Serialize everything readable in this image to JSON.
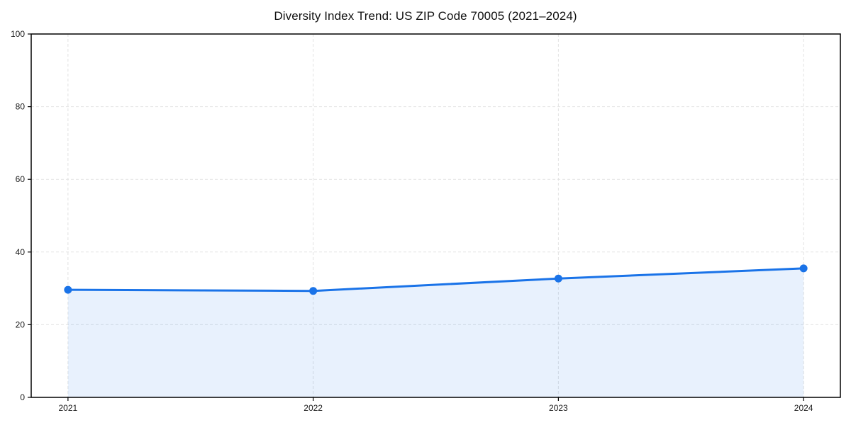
{
  "figure": {
    "background": "#ffffff"
  },
  "chart_data": {
    "type": "area",
    "title": "Diversity Index Trend: US ZIP Code 70005 (2021–2024)",
    "categories": [
      "2021",
      "2022",
      "2023",
      "2024"
    ],
    "series": [
      {
        "name": "Diversity Index",
        "values": [
          29.6,
          29.3,
          32.7,
          35.5
        ]
      }
    ],
    "xlabel": "",
    "ylabel": "",
    "ylim": [
      0,
      100
    ],
    "yticks": [
      0,
      20,
      40,
      60,
      80,
      100
    ],
    "grid": true,
    "grid_style": "dashed",
    "legend": false,
    "colors": {
      "line": "#1a73e8",
      "marker": "#1a73e8",
      "fill": "rgba(26,115,232,0.10)",
      "grid": "#e2e2e2",
      "axis": "#000000",
      "tick_text": "#1a1a1a",
      "title_text": "#111111"
    }
  }
}
